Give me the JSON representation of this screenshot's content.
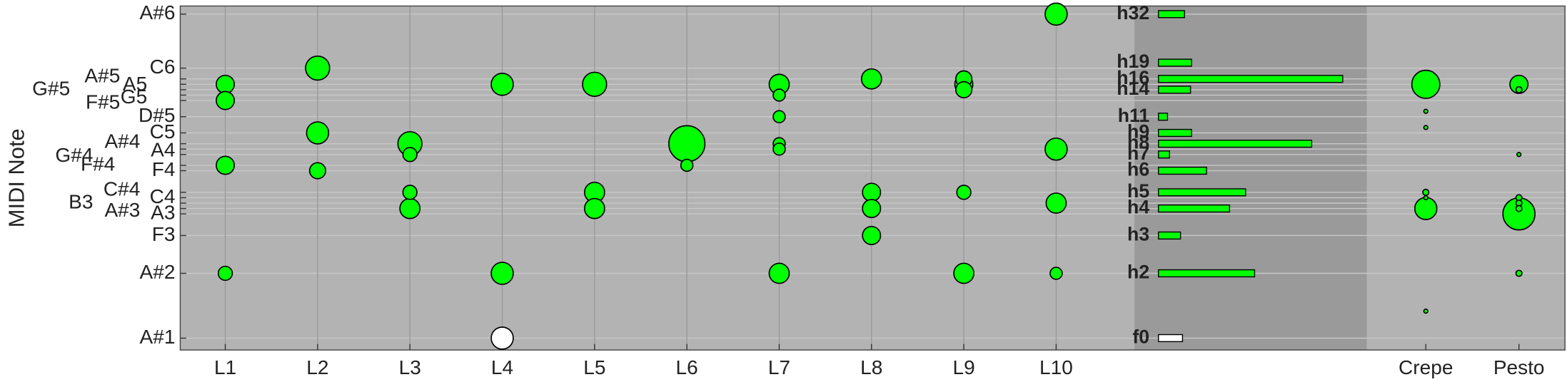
{
  "chart_data": {
    "type": "bubble",
    "y_label": "MIDI Note",
    "ylim": [
      31.8,
      95.5
    ],
    "yticks": [
      {
        "value": 34,
        "label": "A#1"
      },
      {
        "value": 46,
        "label": "A#2"
      },
      {
        "value": 53,
        "label": "F3"
      },
      {
        "value": 57,
        "label": "A3"
      },
      {
        "value": 58,
        "label": "A#3"
      },
      {
        "value": 59,
        "label": "B3"
      },
      {
        "value": 60,
        "label": "C4"
      },
      {
        "value": 61,
        "label": "C#4"
      },
      {
        "value": 65,
        "label": "F4"
      },
      {
        "value": 66,
        "label": "F#4"
      },
      {
        "value": 68,
        "label": "G#4"
      },
      {
        "value": 69,
        "label": "A4"
      },
      {
        "value": 70,
        "label": "A#4"
      },
      {
        "value": 72,
        "label": "C5"
      },
      {
        "value": 75,
        "label": "D#5"
      },
      {
        "value": 78,
        "label": "F#5"
      },
      {
        "value": 79,
        "label": "G5"
      },
      {
        "value": 80,
        "label": "G#5"
      },
      {
        "value": 81,
        "label": "A5"
      },
      {
        "value": 82,
        "label": "A#5"
      },
      {
        "value": 84,
        "label": "C6"
      },
      {
        "value": 94,
        "label": "A#6"
      }
    ],
    "grid": true,
    "categories": [
      "L1",
      "L2",
      "L3",
      "L4",
      "L5",
      "L6",
      "L7",
      "L8",
      "L9",
      "L10",
      "Crepe",
      "Pesto"
    ],
    "bubbles": {
      "color": "#00ff00",
      "x": [
        "L1",
        "L1",
        "L1",
        "L1",
        "L2",
        "L2",
        "L2",
        "L3",
        "L3",
        "L3",
        "L3",
        "L4",
        "L4",
        "L4",
        "L5",
        "L5",
        "L5",
        "L6",
        "L6",
        "L7",
        "L7",
        "L7",
        "L7",
        "L7",
        "L7",
        "L8",
        "L8",
        "L8",
        "L8",
        "L9",
        "L9",
        "L9",
        "L9",
        "L9",
        "L10",
        "L10",
        "L10",
        "L10",
        "Crepe",
        "Crepe",
        "Crepe",
        "Crepe",
        "Crepe",
        "Crepe",
        "Crepe",
        "Pesto",
        "Pesto",
        "Pesto",
        "Pesto",
        "Pesto",
        "Pesto",
        "Pesto",
        "Pesto"
      ],
      "y": [
        81,
        78,
        66,
        46,
        84,
        72,
        65,
        70,
        68,
        61,
        58,
        81,
        46,
        34,
        81,
        61,
        58,
        70,
        66,
        81,
        79,
        75,
        70,
        69,
        46,
        82,
        61,
        58,
        53,
        82,
        81,
        80,
        61,
        46,
        94,
        69,
        59,
        46,
        81,
        76,
        73,
        61,
        60,
        58,
        39,
        81,
        80,
        68,
        60,
        59,
        58,
        57,
        46
      ],
      "size": [
        9,
        9,
        9,
        7,
        12,
        11,
        8,
        12,
        7,
        7,
        10,
        11,
        11,
        11,
        12,
        10,
        10,
        18,
        6,
        10,
        6,
        6,
        6,
        6,
        10,
        10,
        9,
        9,
        9,
        8,
        9,
        8,
        7,
        10,
        11,
        11,
        10,
        6,
        14,
        2,
        2,
        3,
        2,
        11,
        2,
        9,
        3,
        2,
        3,
        3,
        3,
        16,
        3
      ]
    },
    "harmonics": {
      "color": "#00ff00",
      "base_color": "#ffffff",
      "xlim": [
        0,
        200
      ],
      "labels": [
        "f0",
        "h2",
        "h3",
        "h4",
        "h5",
        "h6",
        "h7",
        "h8",
        "h9",
        "h11",
        "h14",
        "h16",
        "h19",
        "h32"
      ],
      "notes": [
        34,
        46,
        53,
        58,
        61,
        65,
        68,
        70,
        72,
        75,
        80,
        82,
        85,
        94
      ],
      "values": [
        24,
        96,
        22,
        71,
        87,
        48,
        11,
        153,
        33,
        9,
        32,
        184,
        33,
        26
      ]
    }
  }
}
